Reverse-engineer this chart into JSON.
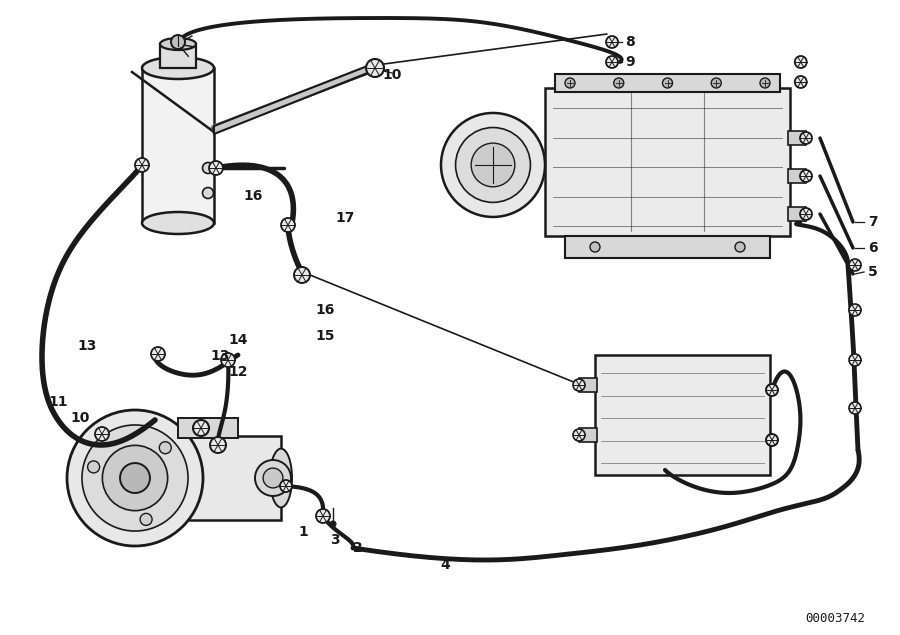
{
  "background_color": "#ffffff",
  "line_color": "#1a1a1a",
  "text_color": "#1a1a1a",
  "figure_id": "00003742",
  "fig_width": 9.0,
  "fig_height": 6.35,
  "dpi": 100,
  "lw_hose": 3.5,
  "lw_pipe": 2.5,
  "lw_comp": 1.8,
  "labels": [
    [
      "8",
      625,
      42,
      "left"
    ],
    [
      "9",
      625,
      62,
      "left"
    ],
    [
      "10",
      392,
      75,
      "center"
    ],
    [
      "7",
      868,
      222,
      "left"
    ],
    [
      "6",
      868,
      248,
      "left"
    ],
    [
      "5",
      868,
      272,
      "left"
    ],
    [
      "16",
      243,
      196,
      "left"
    ],
    [
      "17",
      335,
      218,
      "left"
    ],
    [
      "16",
      315,
      310,
      "left"
    ],
    [
      "15",
      315,
      336,
      "left"
    ],
    [
      "14",
      228,
      340,
      "left"
    ],
    [
      "13",
      210,
      356,
      "left"
    ],
    [
      "13",
      77,
      346,
      "left"
    ],
    [
      "12",
      228,
      372,
      "left"
    ],
    [
      "11",
      48,
      402,
      "left"
    ],
    [
      "10",
      70,
      418,
      "left"
    ],
    [
      "1",
      303,
      532,
      "center"
    ],
    [
      "3",
      335,
      540,
      "center"
    ],
    [
      "2",
      358,
      548,
      "center"
    ],
    [
      "4",
      445,
      565,
      "center"
    ]
  ]
}
